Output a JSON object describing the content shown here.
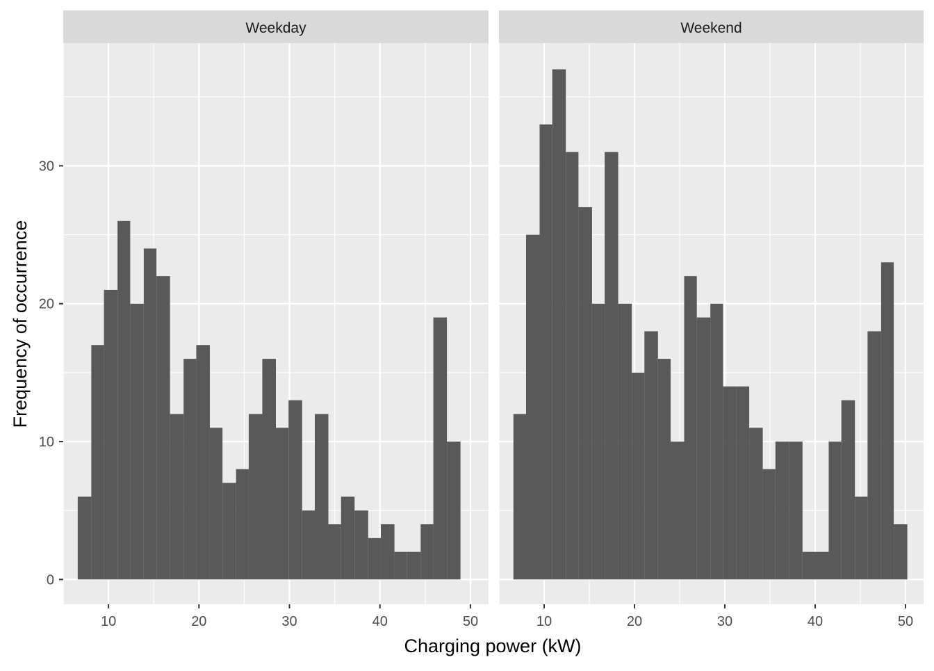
{
  "chart_data": {
    "type": "bar",
    "xlabel": "Charging power (kW)",
    "ylabel": "Frequency of occurrence",
    "xlim": [
      5,
      52
    ],
    "ylim": [
      -1.8,
      38.9
    ],
    "x_ticks": [
      10,
      20,
      30,
      40,
      50
    ],
    "y_ticks": [
      0,
      10,
      20,
      30
    ],
    "grid": true,
    "bar_color": "#595959",
    "panel_bg": "#ebebeb",
    "strip_bg": "#d9d9d9",
    "panels": [
      {
        "label": "Weekday",
        "bins": [
          {
            "x0": 6.6,
            "x1": 8.1,
            "count": 6
          },
          {
            "x0": 8.1,
            "x1": 9.5,
            "count": 17
          },
          {
            "x0": 9.5,
            "x1": 11.0,
            "count": 21
          },
          {
            "x0": 11.0,
            "x1": 12.4,
            "count": 26
          },
          {
            "x0": 12.4,
            "x1": 13.9,
            "count": 20
          },
          {
            "x0": 13.9,
            "x1": 15.3,
            "count": 24
          },
          {
            "x0": 15.3,
            "x1": 16.8,
            "count": 22
          },
          {
            "x0": 16.8,
            "x1": 18.3,
            "count": 12
          },
          {
            "x0": 18.3,
            "x1": 19.7,
            "count": 16
          },
          {
            "x0": 19.7,
            "x1": 21.2,
            "count": 17
          },
          {
            "x0": 21.2,
            "x1": 22.6,
            "count": 11
          },
          {
            "x0": 22.6,
            "x1": 24.1,
            "count": 7
          },
          {
            "x0": 24.1,
            "x1": 25.5,
            "count": 8
          },
          {
            "x0": 25.5,
            "x1": 27.0,
            "count": 12
          },
          {
            "x0": 27.0,
            "x1": 28.5,
            "count": 16
          },
          {
            "x0": 28.5,
            "x1": 29.9,
            "count": 11
          },
          {
            "x0": 29.9,
            "x1": 31.4,
            "count": 13
          },
          {
            "x0": 31.4,
            "x1": 32.8,
            "count": 5
          },
          {
            "x0": 32.8,
            "x1": 34.3,
            "count": 12
          },
          {
            "x0": 34.3,
            "x1": 35.7,
            "count": 4
          },
          {
            "x0": 35.7,
            "x1": 37.2,
            "count": 6
          },
          {
            "x0": 37.2,
            "x1": 38.7,
            "count": 5
          },
          {
            "x0": 38.7,
            "x1": 40.1,
            "count": 3
          },
          {
            "x0": 40.1,
            "x1": 41.6,
            "count": 4
          },
          {
            "x0": 41.6,
            "x1": 43.0,
            "count": 2
          },
          {
            "x0": 43.0,
            "x1": 44.5,
            "count": 2
          },
          {
            "x0": 44.5,
            "x1": 45.9,
            "count": 4
          },
          {
            "x0": 45.9,
            "x1": 47.4,
            "count": 19
          },
          {
            "x0": 47.4,
            "x1": 48.9,
            "count": 10
          }
        ]
      },
      {
        "label": "Weekend",
        "bins": [
          {
            "x0": 6.6,
            "x1": 8.0,
            "count": 12
          },
          {
            "x0": 8.0,
            "x1": 9.5,
            "count": 25
          },
          {
            "x0": 9.5,
            "x1": 10.9,
            "count": 33
          },
          {
            "x0": 10.9,
            "x1": 12.4,
            "count": 37
          },
          {
            "x0": 12.4,
            "x1": 13.8,
            "count": 31
          },
          {
            "x0": 13.8,
            "x1": 15.3,
            "count": 27
          },
          {
            "x0": 15.3,
            "x1": 16.7,
            "count": 20
          },
          {
            "x0": 16.7,
            "x1": 18.2,
            "count": 31
          },
          {
            "x0": 18.2,
            "x1": 19.7,
            "count": 20
          },
          {
            "x0": 19.7,
            "x1": 21.1,
            "count": 15
          },
          {
            "x0": 21.1,
            "x1": 22.6,
            "count": 18
          },
          {
            "x0": 22.6,
            "x1": 24.0,
            "count": 16
          },
          {
            "x0": 24.0,
            "x1": 25.5,
            "count": 10
          },
          {
            "x0": 25.5,
            "x1": 26.9,
            "count": 22
          },
          {
            "x0": 26.9,
            "x1": 28.4,
            "count": 19
          },
          {
            "x0": 28.4,
            "x1": 29.8,
            "count": 20
          },
          {
            "x0": 29.8,
            "x1": 31.3,
            "count": 14
          },
          {
            "x0": 31.3,
            "x1": 32.7,
            "count": 14
          },
          {
            "x0": 32.7,
            "x1": 34.2,
            "count": 11
          },
          {
            "x0": 34.2,
            "x1": 35.6,
            "count": 8
          },
          {
            "x0": 35.6,
            "x1": 37.1,
            "count": 10
          },
          {
            "x0": 37.1,
            "x1": 38.6,
            "count": 10
          },
          {
            "x0": 38.6,
            "x1": 40.0,
            "count": 2
          },
          {
            "x0": 40.0,
            "x1": 41.5,
            "count": 2
          },
          {
            "x0": 41.5,
            "x1": 42.9,
            "count": 10
          },
          {
            "x0": 42.9,
            "x1": 44.4,
            "count": 13
          },
          {
            "x0": 44.4,
            "x1": 45.8,
            "count": 6
          },
          {
            "x0": 45.8,
            "x1": 47.3,
            "count": 18
          },
          {
            "x0": 47.3,
            "x1": 48.7,
            "count": 23
          },
          {
            "x0": 48.7,
            "x1": 50.2,
            "count": 4
          }
        ]
      }
    ]
  }
}
